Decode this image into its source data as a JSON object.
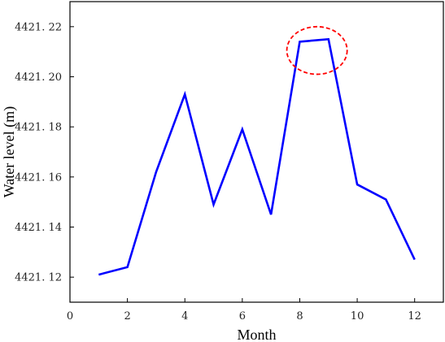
{
  "chart_data": {
    "type": "line",
    "title": "",
    "xlabel": "Month",
    "ylabel": "Water level (m)",
    "xlim": [
      0,
      13
    ],
    "ylim": [
      4421.11,
      4421.23
    ],
    "x_ticks": [
      0,
      2,
      4,
      6,
      8,
      10,
      12
    ],
    "x_tick_labels": [
      "0",
      "2",
      "4",
      "6",
      "8",
      "10",
      "12"
    ],
    "y_ticks": [
      4421.12,
      4421.14,
      4421.16,
      4421.18,
      4421.2,
      4421.22
    ],
    "y_tick_labels": [
      "4421. 12",
      "4421. 14",
      "4421. 16",
      "4421. 18",
      "4421. 20",
      "4421. 22"
    ],
    "grid": false,
    "legend": "none",
    "series": [
      {
        "color": "#0000ff",
        "x": [
          1,
          2,
          3,
          4,
          5,
          6,
          7,
          8,
          9,
          10,
          11,
          12
        ],
        "y": [
          4421.121,
          4421.124,
          4421.162,
          4421.193,
          4421.149,
          4421.179,
          4421.145,
          4421.214,
          4421.215,
          4421.157,
          4421.151,
          4421.127
        ]
      }
    ],
    "annotations": [
      {
        "type": "dashed-ellipse",
        "color": "#ff0000",
        "center": [
          8.6,
          4421.2105
        ],
        "radius_x": 1.05,
        "radius_y": 0.0095
      }
    ]
  }
}
